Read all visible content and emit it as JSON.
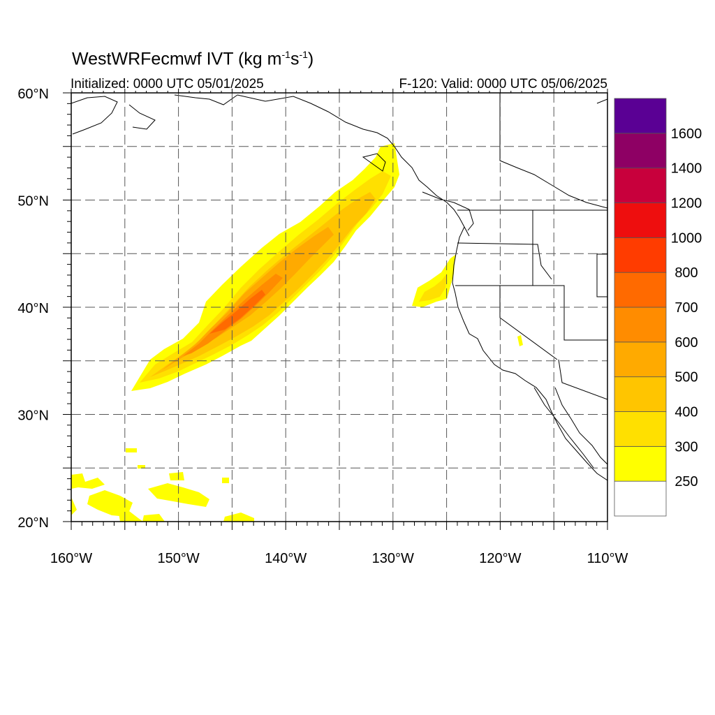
{
  "map": {
    "title_main": "WestWRFecmwf IVT (kg m",
    "title_exp1": "-1",
    "title_mid": "s",
    "title_exp2": "-1",
    "title_end": ")",
    "init_text": "Initialized: 0000 UTC 05/01/2025",
    "valid_text": "F-120: Valid: 0000 UTC 05/06/2025",
    "lon_range": [
      -160,
      -110
    ],
    "lat_range": [
      20,
      60
    ],
    "lon_ticks": [
      "160°W",
      "150°W",
      "140°W",
      "130°W",
      "120°W",
      "110°W"
    ],
    "lat_ticks": [
      "20°N",
      "30°N",
      "40°N",
      "50°N",
      "60°N"
    ],
    "gridlines": "dashed every 5°",
    "region": "Northeast Pacific and western North America"
  },
  "colorbar": {
    "labels": [
      "250",
      "300",
      "400",
      "500",
      "600",
      "700",
      "800",
      "1000",
      "1200",
      "1400",
      "1600"
    ],
    "colors": [
      "#ffffff",
      "#ffff00",
      "#ffe000",
      "#ffc500",
      "#ffaa00",
      "#ff8c00",
      "#ff6a00",
      "#ff3c00",
      "#ee0e0e",
      "#c8003c",
      "#8e0064",
      "#5a0094"
    ]
  },
  "chart_data": {
    "type": "heatmap",
    "variable": "IVT",
    "features": [
      {
        "levels": "250-700",
        "lon_span": [
          -154.5,
          -130
        ],
        "lat_span": [
          32.5,
          55.5
        ],
        "peak": "600-700",
        "peak_near": [
          -142,
          40
        ]
      },
      {
        "levels": "250-400",
        "lon_span": [
          -128,
          -124.5
        ],
        "lat_span": [
          40,
          45
        ]
      },
      {
        "levels": "250-300",
        "lon_span": [
          -160,
          -142
        ],
        "lat_span": [
          20,
          27
        ]
      }
    ]
  }
}
